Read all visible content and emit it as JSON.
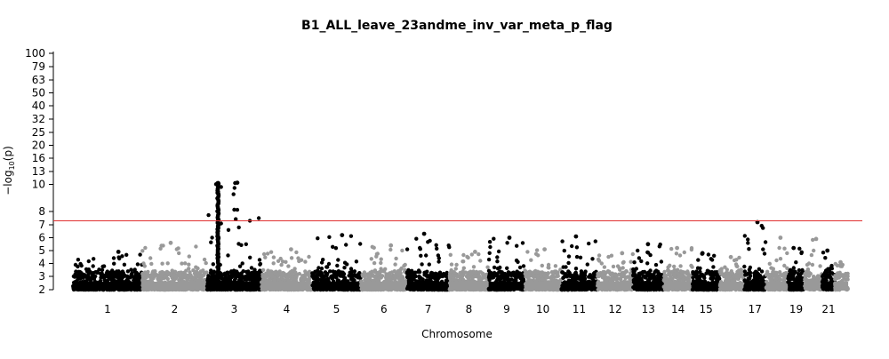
{
  "chart_data": {
    "type": "scatter",
    "subtype": "manhattan",
    "title": "B1_ALL_leave_23andme_inv_var_meta_p_flag",
    "xlabel": "Chromosome",
    "ylabel_text": "−log",
    "ylabel_sub": "10",
    "ylabel_tail": "(p)",
    "y_ticks": [
      2,
      3,
      4,
      5,
      6,
      7,
      8,
      10,
      13,
      16,
      20,
      25,
      32,
      40,
      50,
      63,
      79,
      100
    ],
    "y_scale": "compressed above 10",
    "ylim": [
      2,
      100
    ],
    "significance_threshold": 7.3,
    "threshold_color": "#e03030",
    "colors": {
      "odd": "#000000",
      "even": "#999999"
    },
    "x_tick_labels": [
      "1",
      "2",
      "3",
      "4",
      "5",
      "6",
      "7",
      "8",
      "9",
      "10",
      "11",
      "12",
      "13",
      "14",
      "15",
      "17",
      "19",
      "21"
    ],
    "chromosomes": [
      {
        "chr": "1",
        "peak": 4.9
      },
      {
        "chr": "2",
        "peak": 5.6
      },
      {
        "chr": "3",
        "peak": 10.4
      },
      {
        "chr": "4",
        "peak": 5.1
      },
      {
        "chr": "5",
        "peak": 6.2
      },
      {
        "chr": "6",
        "peak": 5.4
      },
      {
        "chr": "7",
        "peak": 6.3
      },
      {
        "chr": "8",
        "peak": 4.9
      },
      {
        "chr": "9",
        "peak": 6.0
      },
      {
        "chr": "10",
        "peak": 5.1
      },
      {
        "chr": "11",
        "peak": 6.1
      },
      {
        "chr": "12",
        "peak": 4.8
      },
      {
        "chr": "13",
        "peak": 5.5
      },
      {
        "chr": "14",
        "peak": 5.2
      },
      {
        "chr": "15",
        "peak": 4.8
      },
      {
        "chr": "16",
        "peak": 4.5
      },
      {
        "chr": "17",
        "peak": 7.2
      },
      {
        "chr": "18",
        "peak": 6.0
      },
      {
        "chr": "19",
        "peak": 5.2
      },
      {
        "chr": "20",
        "peak": 5.9
      },
      {
        "chr": "21",
        "peak": 5.0
      },
      {
        "chr": "22",
        "peak": 4.1
      }
    ],
    "grid": false,
    "legend": "none"
  }
}
